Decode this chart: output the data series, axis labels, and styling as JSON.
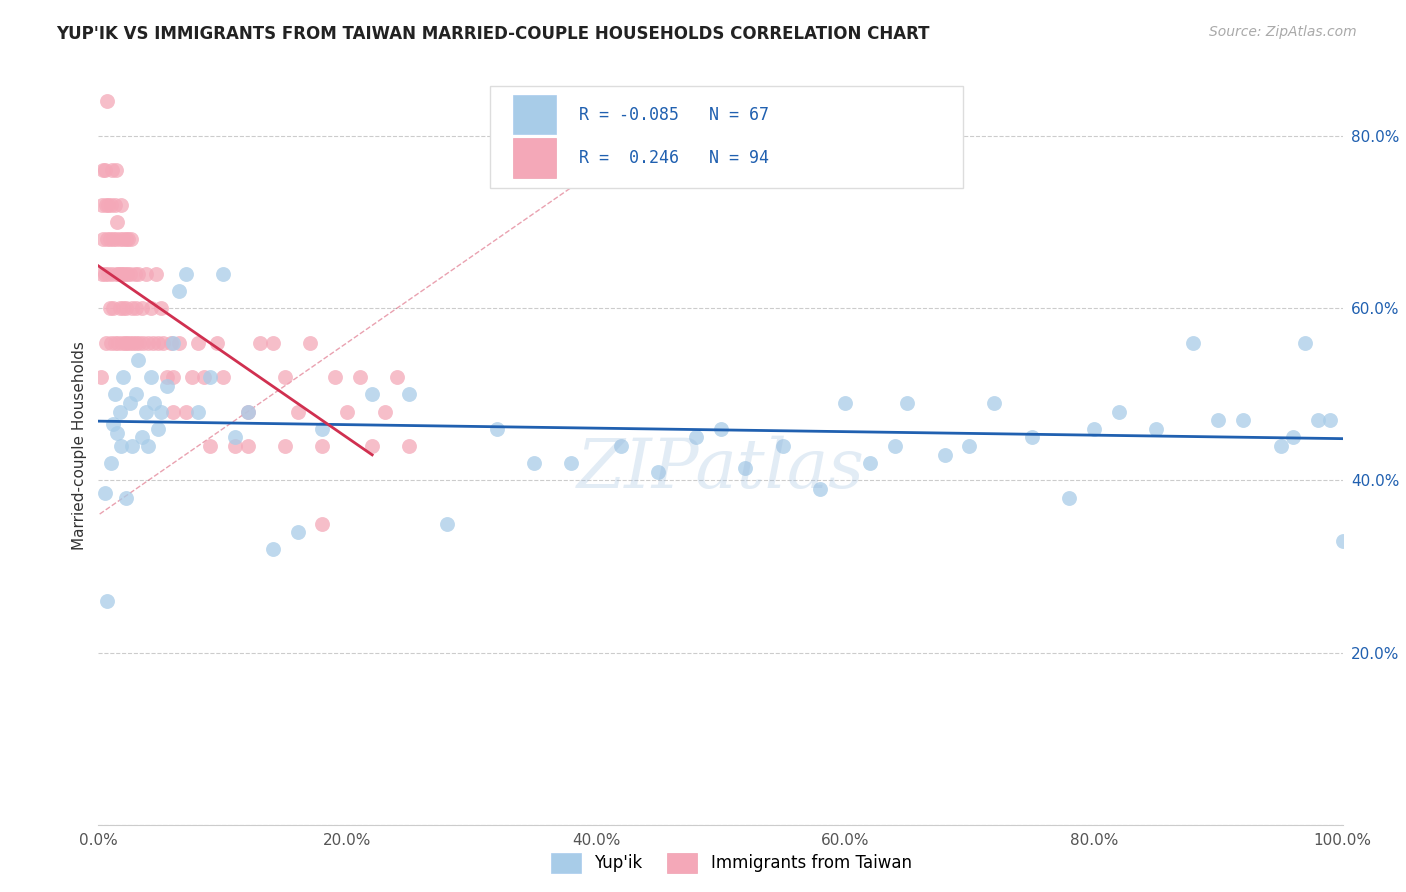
{
  "title": "YUP'IK VS IMMIGRANTS FROM TAIWAN MARRIED-COUPLE HOUSEHOLDS CORRELATION CHART",
  "source": "Source: ZipAtlas.com",
  "ylabel": "Married-couple Households",
  "legend_label1": "Yup'ik",
  "legend_label2": "Immigrants from Taiwan",
  "R1": -0.085,
  "N1": 67,
  "R2": 0.246,
  "N2": 94,
  "color1": "#a8cce8",
  "color2": "#f4a8b8",
  "trendline1_color": "#2060b0",
  "trendline2_color": "#d03050",
  "xlim": [
    0,
    1.0
  ],
  "ylim": [
    0,
    0.88
  ],
  "xticks": [
    0.0,
    0.2,
    0.4,
    0.6,
    0.8,
    1.0
  ],
  "yticks": [
    0.0,
    0.2,
    0.4,
    0.6,
    0.8
  ],
  "xticklabels": [
    "0.0%",
    "20.0%",
    "40.0%",
    "60.0%",
    "80.0%",
    "100.0%"
  ],
  "yticklabels": [
    "",
    "20.0%",
    "40.0%",
    "60.0%",
    "80.0%"
  ],
  "background_color": "#ffffff",
  "grid_color": "#cccccc",
  "watermark": "ZIPatlas",
  "tick_color_x": "#555555",
  "tick_color_y": "#2060b0"
}
